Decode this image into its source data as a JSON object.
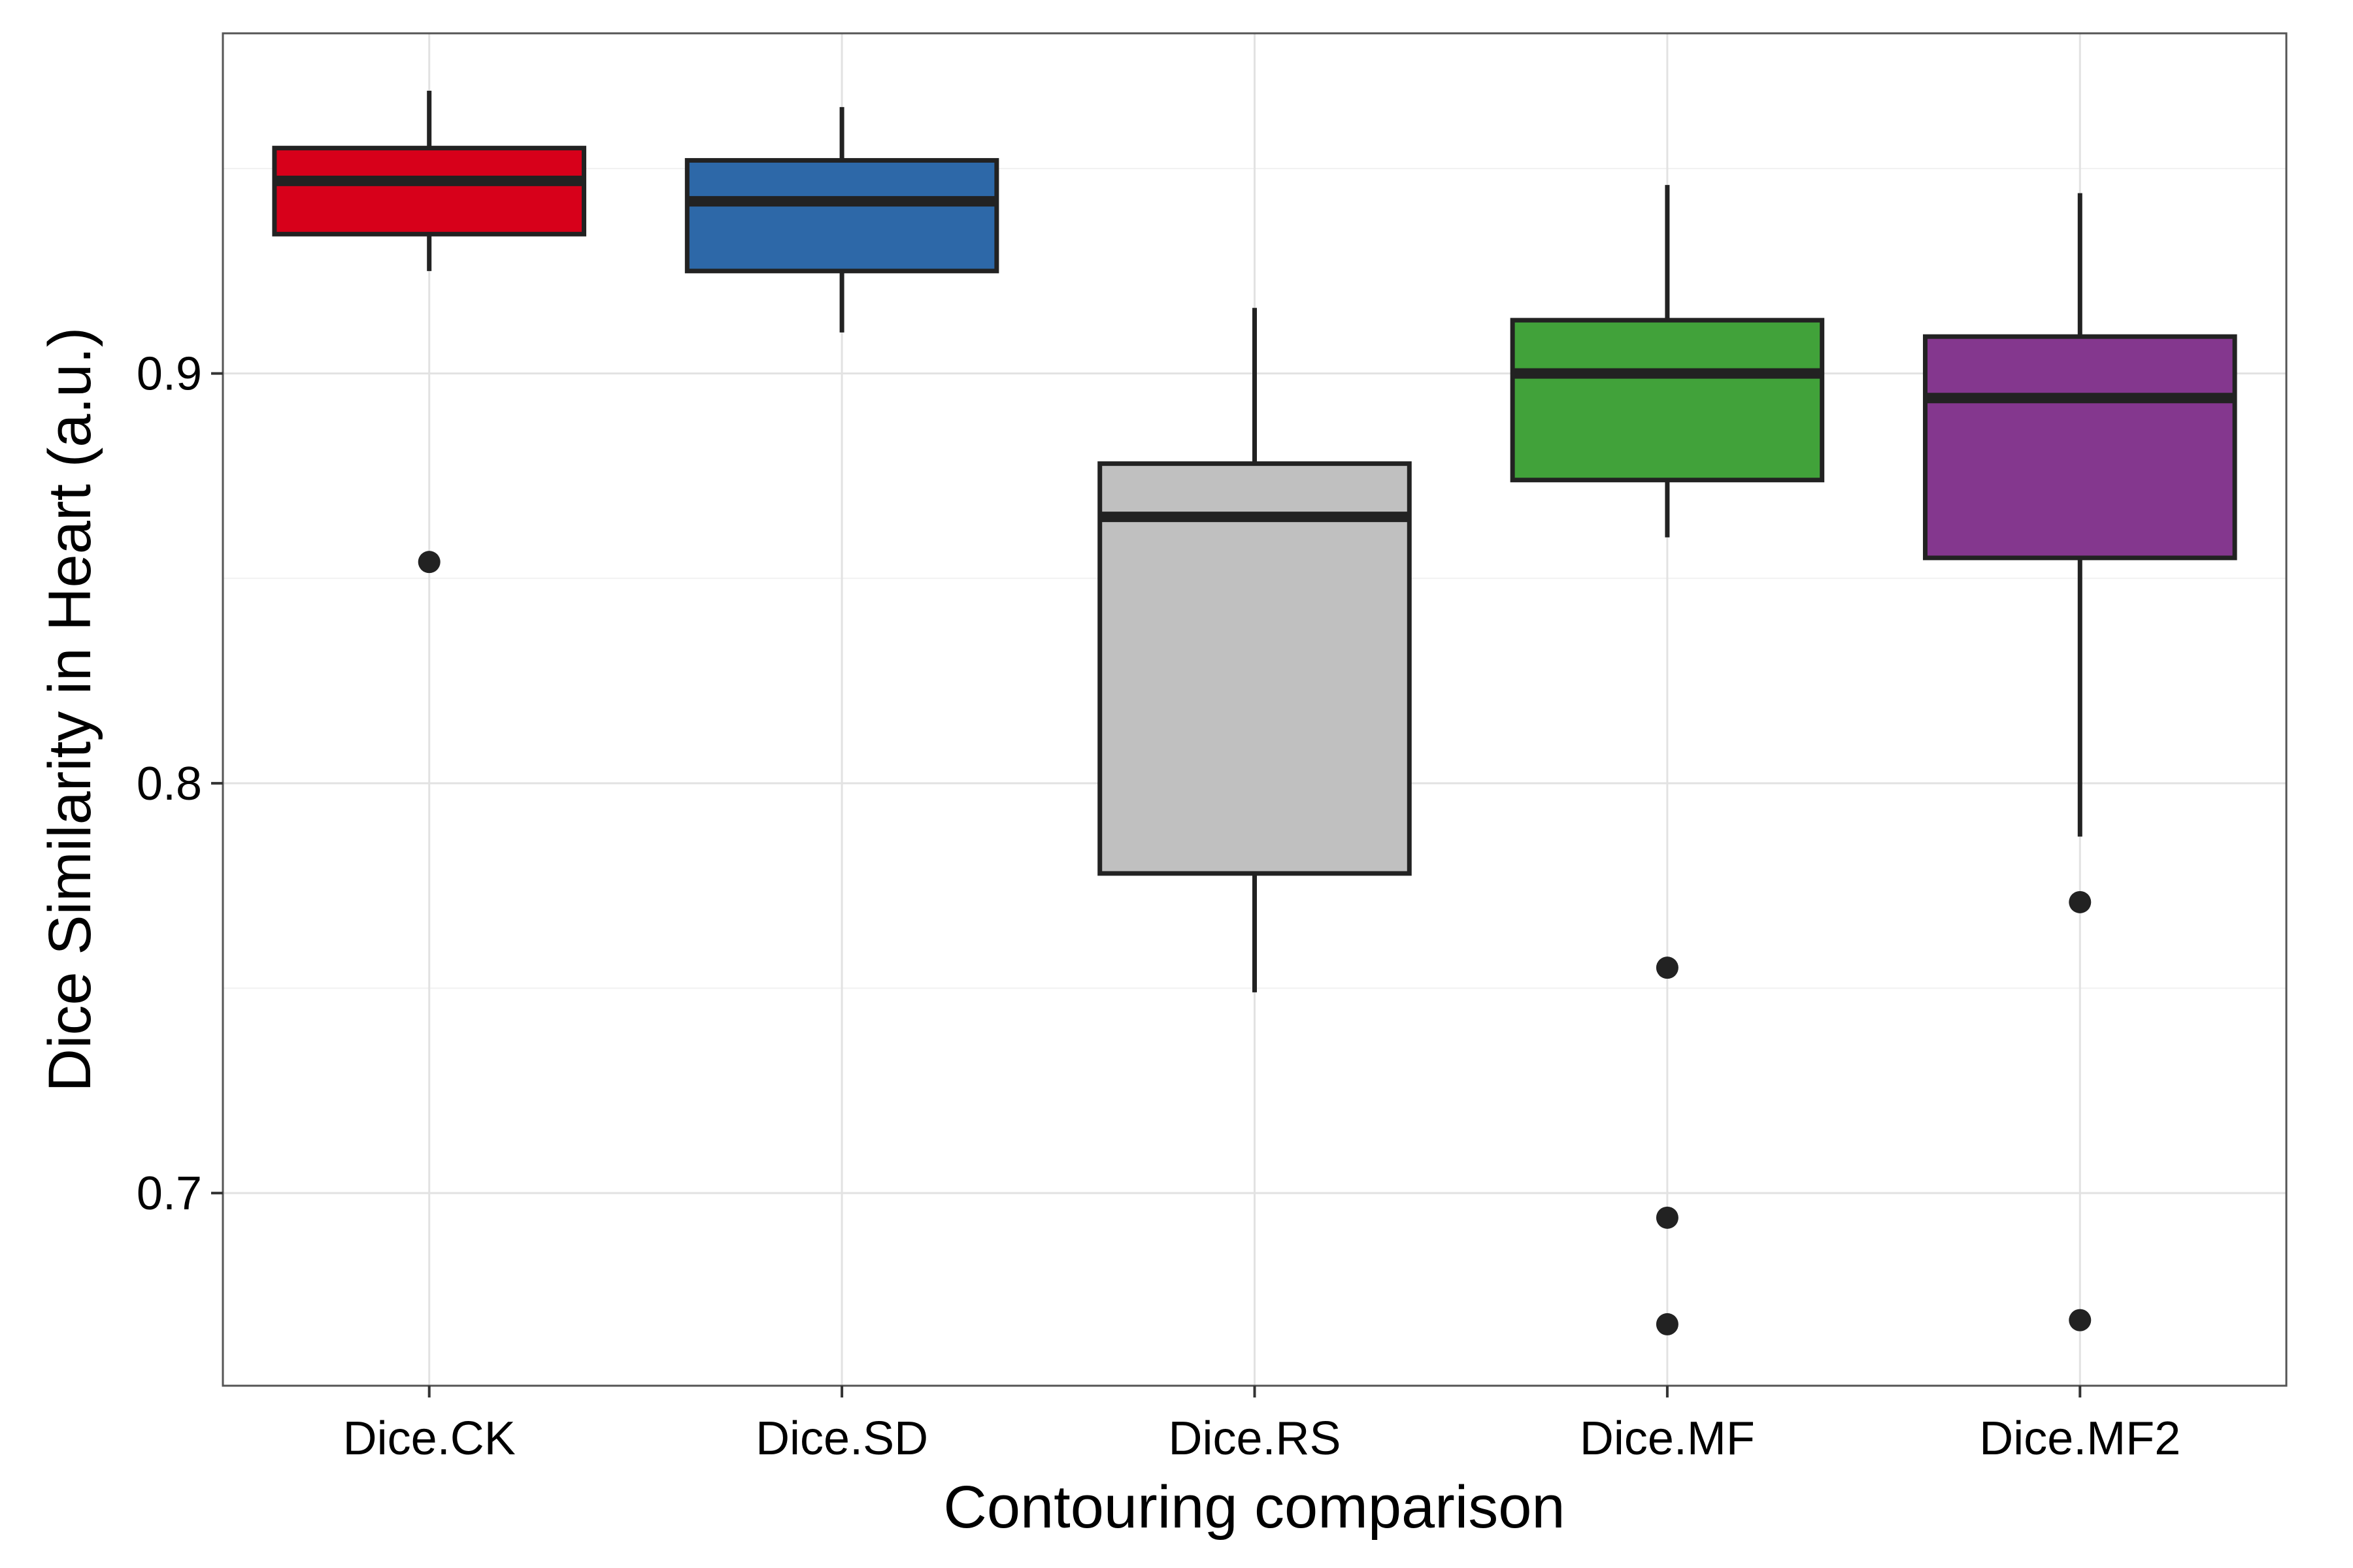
{
  "chart_data": {
    "type": "boxplot",
    "title": "",
    "xlabel": "Contouring comparison",
    "ylabel": "Dice Similarity in Heart (a.u.)",
    "ylim": [
      0.653,
      0.983
    ],
    "yticks": [
      0.7,
      0.8,
      0.9
    ],
    "yminor": [
      0.75,
      0.85,
      0.95
    ],
    "grid": true,
    "legend": "none",
    "categories": [
      "Dice.CK",
      "Dice.SD",
      "Dice.RS",
      "Dice.MF",
      "Dice.MF2"
    ],
    "boxes": [
      {
        "label": "Dice.CK",
        "color": "#d7001a",
        "whisker_low": 0.925,
        "q1": 0.934,
        "median": 0.947,
        "q3": 0.955,
        "whisker_high": 0.969,
        "outliers": [
          0.854
        ]
      },
      {
        "label": "Dice.SD",
        "color": "#2d68a8",
        "whisker_low": 0.91,
        "q1": 0.925,
        "median": 0.942,
        "q3": 0.952,
        "whisker_high": 0.965,
        "outliers": []
      },
      {
        "label": "Dice.RS",
        "color": "#c0c0c0",
        "whisker_low": 0.749,
        "q1": 0.778,
        "median": 0.865,
        "q3": 0.878,
        "whisker_high": 0.916,
        "outliers": []
      },
      {
        "label": "Dice.MF",
        "color": "#41a23a",
        "whisker_low": 0.86,
        "q1": 0.874,
        "median": 0.9,
        "q3": 0.913,
        "whisker_high": 0.946,
        "outliers": [
          0.755,
          0.694,
          0.668
        ]
      },
      {
        "label": "Dice.MF2",
        "color": "#84378e",
        "whisker_low": 0.787,
        "q1": 0.855,
        "median": 0.894,
        "q3": 0.909,
        "whisker_high": 0.944,
        "outliers": [
          0.771,
          0.669
        ]
      }
    ]
  }
}
